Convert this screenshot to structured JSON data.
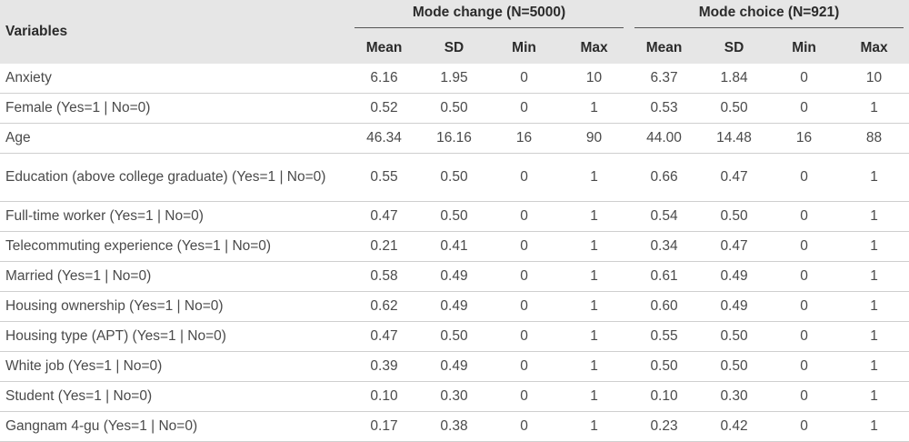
{
  "table": {
    "variables_header": "Variables",
    "groups": [
      {
        "label": "Mode change (N=5000)"
      },
      {
        "label": "Mode choice (N=921)"
      }
    ],
    "subheaders": [
      "Mean",
      "SD",
      "Min",
      "Max",
      "Mean",
      "SD",
      "Min",
      "Max"
    ],
    "rows": [
      {
        "variable": "Anxiety",
        "values": [
          "6.16",
          "1.95",
          "0",
          "10",
          "6.37",
          "1.84",
          "0",
          "10"
        ]
      },
      {
        "variable": "Female (Yes=1 | No=0)",
        "values": [
          "0.52",
          "0.50",
          "0",
          "1",
          "0.53",
          "0.50",
          "0",
          "1"
        ]
      },
      {
        "variable": "Age",
        "values": [
          "46.34",
          "16.16",
          "16",
          "90",
          "44.00",
          "14.48",
          "16",
          "88"
        ]
      },
      {
        "variable": "Education (above college graduate) (Yes=1 | No=0)",
        "values": [
          "0.55",
          "0.50",
          "0",
          "1",
          "0.66",
          "0.47",
          "0",
          "1"
        ]
      },
      {
        "variable": "Full-time worker (Yes=1 | No=0)",
        "values": [
          "0.47",
          "0.50",
          "0",
          "1",
          "0.54",
          "0.50",
          "0",
          "1"
        ]
      },
      {
        "variable": "Telecommuting experience (Yes=1 | No=0)",
        "values": [
          "0.21",
          "0.41",
          "0",
          "1",
          "0.34",
          "0.47",
          "0",
          "1"
        ]
      },
      {
        "variable": "Married (Yes=1 | No=0)",
        "values": [
          "0.58",
          "0.49",
          "0",
          "1",
          "0.61",
          "0.49",
          "0",
          "1"
        ]
      },
      {
        "variable": "Housing ownership (Yes=1 | No=0)",
        "values": [
          "0.62",
          "0.49",
          "0",
          "1",
          "0.60",
          "0.49",
          "0",
          "1"
        ]
      },
      {
        "variable": "Housing type (APT) (Yes=1 | No=0)",
        "values": [
          "0.47",
          "0.50",
          "0",
          "1",
          "0.55",
          "0.50",
          "0",
          "1"
        ]
      },
      {
        "variable": "White job (Yes=1 | No=0)",
        "values": [
          "0.39",
          "0.49",
          "0",
          "1",
          "0.50",
          "0.50",
          "0",
          "1"
        ]
      },
      {
        "variable": "Student (Yes=1 | No=0)",
        "values": [
          "0.10",
          "0.30",
          "0",
          "1",
          "0.10",
          "0.30",
          "0",
          "1"
        ]
      },
      {
        "variable": "Gangnam 4-gu (Yes=1 | No=0)",
        "values": [
          "0.17",
          "0.38",
          "0",
          "1",
          "0.23",
          "0.42",
          "0",
          "1"
        ]
      }
    ]
  }
}
